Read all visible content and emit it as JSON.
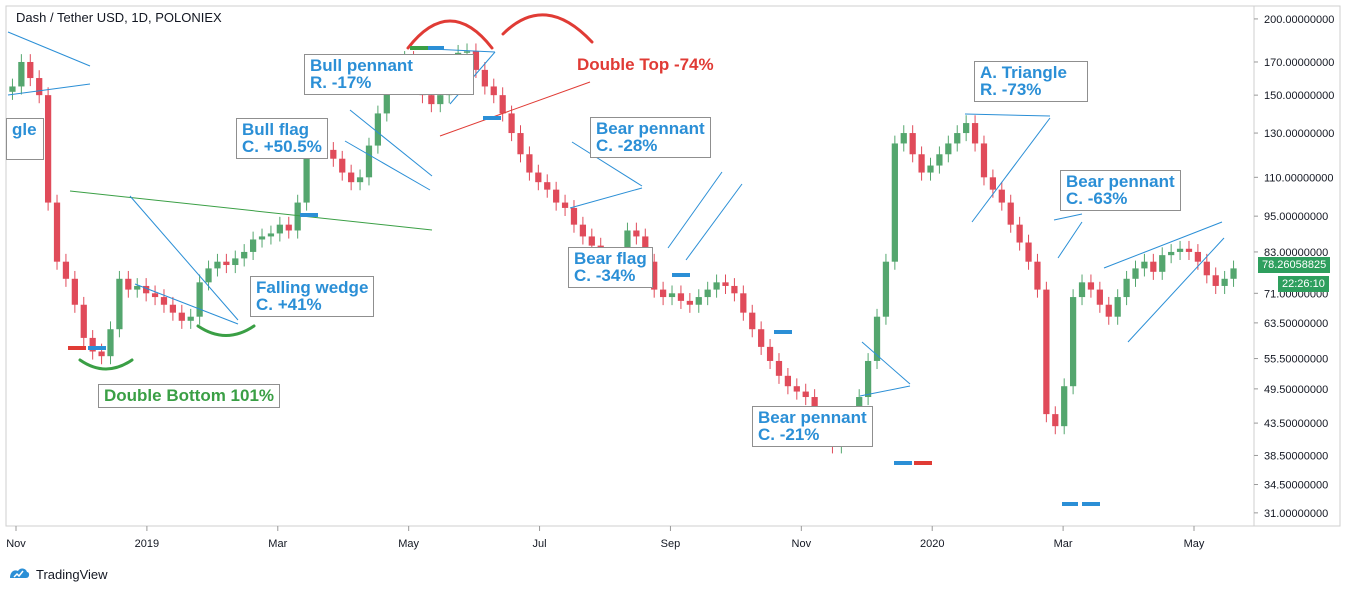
{
  "header": {
    "title": "Dash / Tether USD, 1D, POLONIEX"
  },
  "footer": {
    "brand": "TradingView",
    "brand_icon": "tradingview-logo-icon"
  },
  "price_tags": {
    "last_price": "78.26058825",
    "countdown": "22:26:10",
    "color": "#2e9f5e"
  },
  "colors": {
    "up": "#54a66e",
    "down": "#e04b5a",
    "annotation_blue": "#2b8fd6",
    "annotation_green": "#3a9f45",
    "annotation_red": "#e03b35"
  },
  "annotations": {
    "triangle_partial": "gle",
    "double_bottom": "Double Bottom 101%",
    "bull_flag_1": "Bull flag",
    "bull_flag_2": "C. +50.5%",
    "falling_wedge_1": "Falling wedge",
    "falling_wedge_2": "C. +41%",
    "bull_pennant_1": "Bull pennant",
    "bull_pennant_2": "R. -17%",
    "double_top": "Double Top -74%",
    "bear_pennant_a_1": "Bear pennant",
    "bear_pennant_a_2": "C. -28%",
    "bear_flag_1": "Bear flag",
    "bear_flag_2": "C. -34%",
    "bear_pennant_b_1": "Bear pennant",
    "bear_pennant_b_2": "C. -21%",
    "a_triangle_1": "A. Triangle",
    "a_triangle_2": "R. -73%",
    "bear_pennant_c_1": "Bear pennant",
    "bear_pennant_c_2": "C. -63%"
  },
  "chart_data": {
    "type": "line",
    "title": "Dash / Tether USD, 1D, POLONIEX",
    "price_scale": "log",
    "x_ticks": [
      "Nov",
      "2019",
      "Mar",
      "May",
      "Jul",
      "Sep",
      "Nov",
      "2020",
      "Mar",
      "May"
    ],
    "y_ticks": [
      "200.00000000",
      "170.00000000",
      "150.00000000",
      "130.00000000",
      "110.00000000",
      "95.00000000",
      "83.00000000",
      "71.00000000",
      "63.50000000",
      "55.50000000",
      "49.50000000",
      "43.50000000",
      "38.50000000",
      "34.50000000",
      "31.00000000"
    ],
    "ylim": [
      29.5,
      210
    ],
    "series": [
      {
        "values": [
          155,
          170,
          160,
          150,
          100,
          80,
          75,
          68,
          60,
          57,
          56,
          62,
          75,
          72,
          73,
          71,
          70,
          68,
          66,
          64,
          65,
          74,
          78,
          80,
          79,
          81,
          83,
          87,
          88,
          89,
          92,
          90,
          100,
          125,
          128,
          122,
          118,
          112,
          108,
          110,
          124,
          140,
          160,
          170,
          172,
          160,
          150,
          145,
          150,
          165,
          176,
          177,
          165,
          155,
          150,
          140,
          130,
          120,
          112,
          108,
          105,
          100,
          98,
          92,
          88,
          85,
          80,
          78,
          82,
          90,
          88,
          80,
          72,
          70,
          71,
          69,
          68,
          70,
          72,
          74,
          73,
          71,
          66,
          62,
          58,
          55,
          52,
          50,
          49,
          48,
          45,
          42,
          40,
          41,
          43,
          48,
          55,
          65,
          80,
          125,
          130,
          120,
          112,
          115,
          120,
          125,
          130,
          135,
          125,
          110,
          105,
          100,
          92,
          86,
          80,
          72,
          45,
          43,
          50,
          70,
          74,
          72,
          68,
          65,
          70,
          75,
          78,
          80,
          77,
          82,
          83,
          84,
          83,
          80,
          76,
          73,
          75,
          78
        ]
      }
    ],
    "grid": false,
    "legend": "none"
  }
}
